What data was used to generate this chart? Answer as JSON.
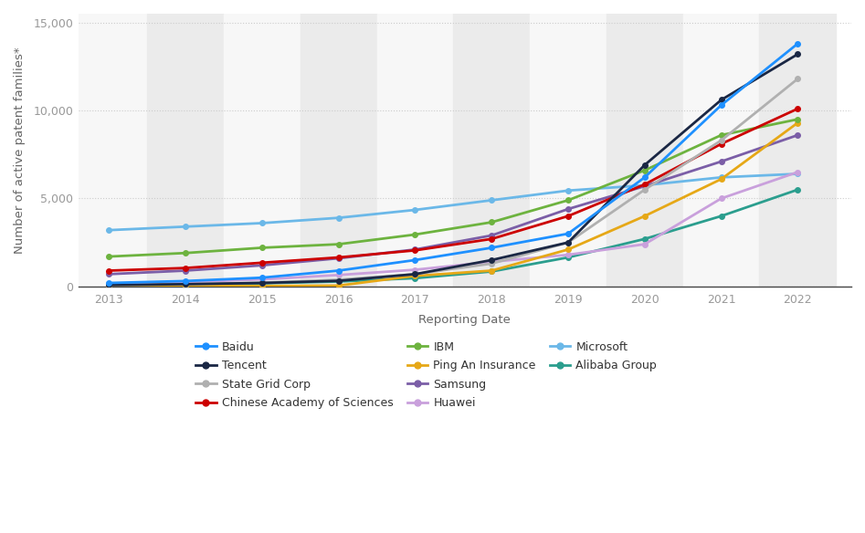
{
  "years": [
    2013,
    2014,
    2015,
    2016,
    2017,
    2018,
    2019,
    2020,
    2021,
    2022
  ],
  "series": [
    {
      "name": "Baidu",
      "values": [
        200,
        310,
        500,
        900,
        1500,
        2200,
        3000,
        6200,
        10300,
        13800
      ],
      "color": "#1e90ff",
      "zorder": 10
    },
    {
      "name": "Tencent",
      "values": [
        80,
        130,
        200,
        320,
        700,
        1500,
        2500,
        6900,
        10600,
        13200
      ],
      "color": "#1a2744",
      "zorder": 9
    },
    {
      "name": "State Grid Corp",
      "values": [
        80,
        130,
        220,
        380,
        700,
        1300,
        2500,
        5500,
        8300,
        11800
      ],
      "color": "#b0b0b0",
      "zorder": 8
    },
    {
      "name": "Chinese Academy of Sciences",
      "values": [
        900,
        1050,
        1350,
        1650,
        2050,
        2700,
        4000,
        5800,
        8100,
        10100
      ],
      "color": "#cc0000",
      "zorder": 7
    },
    {
      "name": "IBM",
      "values": [
        1700,
        1900,
        2200,
        2400,
        2950,
        3650,
        4900,
        6600,
        8600,
        9500
      ],
      "color": "#6db33f",
      "zorder": 6
    },
    {
      "name": "Ping An Insurance",
      "values": [
        20,
        20,
        30,
        50,
        600,
        900,
        2100,
        4000,
        6100,
        9300
      ],
      "color": "#e6a817",
      "zorder": 5
    },
    {
      "name": "Samsung",
      "values": [
        700,
        900,
        1200,
        1600,
        2100,
        2900,
        4400,
        5700,
        7100,
        8600
      ],
      "color": "#7b5ea7",
      "zorder": 4
    },
    {
      "name": "Huawei",
      "values": [
        150,
        250,
        400,
        650,
        950,
        1400,
        1800,
        2400,
        5000,
        6500
      ],
      "color": "#c9a0dc",
      "zorder": 3
    },
    {
      "name": "Microsoft",
      "values": [
        3200,
        3400,
        3600,
        3900,
        4350,
        4900,
        5450,
        5750,
        6200,
        6400
      ],
      "color": "#6bb8e8",
      "zorder": 2
    },
    {
      "name": "Alibaba Group",
      "values": [
        30,
        80,
        180,
        280,
        470,
        850,
        1650,
        2700,
        4000,
        5500
      ],
      "color": "#2b9e8e",
      "zorder": 1
    }
  ],
  "legend_order": [
    [
      "Baidu",
      "Tencent",
      "State Grid Corp"
    ],
    [
      "Chinese Academy of Sciences",
      "IBM",
      "Ping An Insurance"
    ],
    [
      "Samsung",
      "Huawei",
      "Microsoft"
    ],
    [
      "Alibaba Group",
      null,
      null
    ]
  ],
  "xlabel": "Reporting Date",
  "ylabel": "Number of active patent families*",
  "ylim": [
    0,
    15500
  ],
  "yticks": [
    0,
    5000,
    10000,
    15000
  ],
  "xlim_left": 2012.6,
  "xlim_right": 2022.7,
  "background_color": "#ffffff",
  "band_even_color": "#ebebeb",
  "band_odd_color": "#f7f7f7",
  "grid_color": "#cccccc",
  "axis_label_color": "#666666",
  "tick_color": "#999999",
  "legend_text_color": "#333333",
  "axis_fontsize": 9.5,
  "tick_fontsize": 9,
  "legend_fontsize": 9
}
